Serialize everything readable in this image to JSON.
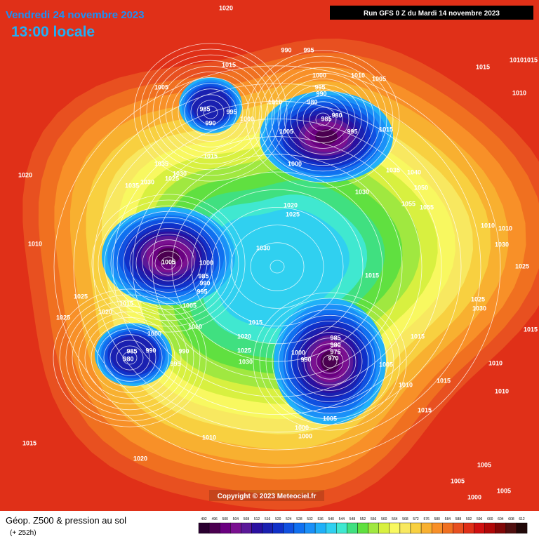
{
  "header": {
    "date": "Vendredi 24 novembre 2023",
    "time": "13:00 locale",
    "run": "Run GFS 0 Z du Mardi 14 novembre 2023"
  },
  "footer": {
    "copyright": "Copyright © 2023 Meteociel.fr",
    "title": "Géop. Z500 & pression au sol",
    "lead": "(+ 252h)"
  },
  "legend": {
    "levels": [
      492,
      496,
      500,
      504,
      508,
      512,
      516,
      520,
      524,
      528,
      532,
      536,
      540,
      544,
      548,
      552,
      556,
      560,
      564,
      568,
      572,
      576,
      580,
      584,
      588,
      592,
      596,
      600,
      604,
      608,
      612
    ],
    "colors": [
      "#2a0030",
      "#4b0050",
      "#6a0080",
      "#7a1090",
      "#5a1898",
      "#2a10a0",
      "#1a20b0",
      "#1030c8",
      "#1050e0",
      "#1070f0",
      "#1a90f8",
      "#20b0f8",
      "#30d0f0",
      "#40e8d0",
      "#40e080",
      "#60e040",
      "#a0e840",
      "#d8f040",
      "#f8f860",
      "#f8e860",
      "#f8d040",
      "#f8b030",
      "#f89028",
      "#f07020",
      "#e85020",
      "#e03018",
      "#d01010",
      "#b00808",
      "#800808",
      "#501010",
      "#200808"
    ]
  },
  "isobar_labels": [
    "1020",
    "1015",
    "1005",
    "985",
    "990",
    "995",
    "1000",
    "1010",
    "1005",
    "990",
    "995",
    "1000",
    "1010",
    "1005",
    "995",
    "990",
    "980",
    "985",
    "980",
    "995",
    "1015",
    "1000",
    "1035",
    "1040",
    "1050",
    "1030",
    "1055",
    "1055",
    "1015",
    "1010",
    "1010",
    "1020",
    "1025",
    "1030",
    "1005",
    "1000",
    "985",
    "990",
    "995",
    "1005",
    "1015",
    "1020",
    "1025",
    "1025",
    "1010",
    "1020",
    "1035",
    "1030",
    "1025",
    "1035",
    "1030",
    "1015",
    "1015",
    "1010",
    "1000",
    "985",
    "990",
    "980",
    "990",
    "995",
    "1020",
    "1025",
    "1030",
    "1015",
    "985",
    "980",
    "975",
    "970",
    "990",
    "1000",
    "1005",
    "1010",
    "1015",
    "1015",
    "1015",
    "1005",
    "1000",
    "1000",
    "1010",
    "1015",
    "1020",
    "1005",
    "1005",
    "1000",
    "1005",
    "1010",
    "1010",
    "1015",
    "1025",
    "1030",
    "1030",
    "1025",
    "1015",
    "1010",
    "1010"
  ]
}
